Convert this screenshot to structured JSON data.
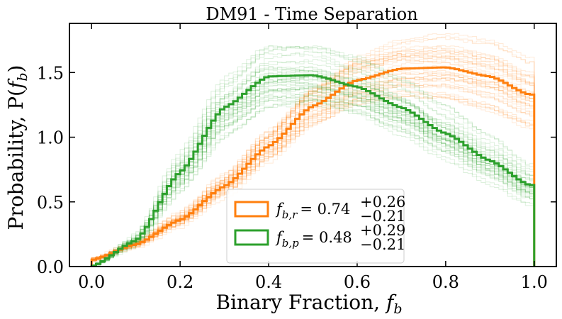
{
  "chart_data": {
    "type": "line",
    "title": "DM91 - Time Separation",
    "xlabel": {
      "text": "Binary Fraction, ",
      "var": "f",
      "sub": "b"
    },
    "ylabel": {
      "text": "Probability, P(",
      "var": "f",
      "sub": "b",
      "close": ")"
    },
    "xlim": [
      -0.05,
      1.05
    ],
    "ylim": [
      0.0,
      1.88
    ],
    "xticks": [
      0.0,
      0.2,
      0.4,
      0.6,
      0.8,
      1.0
    ],
    "xtick_labels": [
      "0.0",
      "0.2",
      "0.4",
      "0.6",
      "0.8",
      "1.0"
    ],
    "yticks": [
      0.0,
      0.5,
      1.0,
      1.5
    ],
    "ytick_labels": [
      "0.0",
      "0.5",
      "1.0",
      "1.5"
    ],
    "drawstyle": "steps",
    "n_bins": 100,
    "series": [
      {
        "name": "f_b,r",
        "color": "#ff7f0e",
        "legend": {
          "var": "f",
          "sub": "b,r",
          "value": "= 0.74",
          "plus": "+0.26",
          "minus": "−0.21"
        },
        "x": [
          0.0,
          0.1,
          0.2,
          0.3,
          0.4,
          0.5,
          0.6,
          0.7,
          0.8,
          0.9,
          0.99
        ],
        "values": [
          0.05,
          0.17,
          0.36,
          0.62,
          0.93,
          1.24,
          1.44,
          1.53,
          1.54,
          1.47,
          1.33
        ],
        "draws_spread": 0.12,
        "n_draws": 40
      },
      {
        "name": "f_b,p",
        "color": "#2ca02c",
        "legend": {
          "var": "f",
          "sub": "b,p",
          "value": "= 0.48",
          "plus": "+0.29",
          "minus": "−0.21"
        },
        "x": [
          0.0,
          0.1,
          0.2,
          0.3,
          0.4,
          0.5,
          0.6,
          0.7,
          0.8,
          0.9,
          0.99
        ],
        "values": [
          0.0,
          0.2,
          0.73,
          1.23,
          1.47,
          1.48,
          1.39,
          1.23,
          1.03,
          0.82,
          0.63
        ],
        "draws_spread": 0.16,
        "n_draws": 40
      }
    ],
    "legend_position": "lower-center"
  }
}
